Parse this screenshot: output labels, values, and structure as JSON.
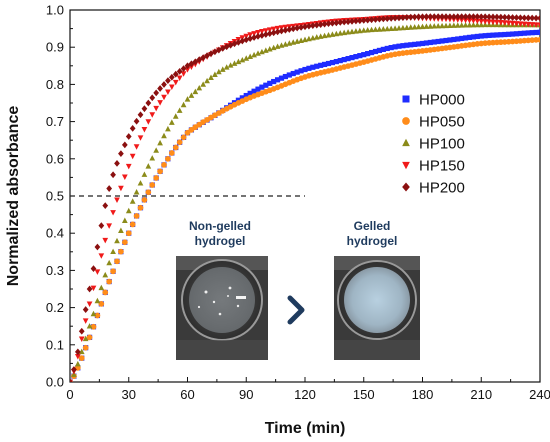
{
  "chart_data": {
    "type": "scatter",
    "xlabel": "Time (min)",
    "ylabel": "Normalized absorbance",
    "xlim": [
      0,
      240
    ],
    "ylim": [
      0,
      1.0
    ],
    "x_ticks": [
      0,
      30,
      60,
      90,
      120,
      150,
      180,
      210,
      240
    ],
    "x_tick_labels": [
      "0",
      "30",
      "60",
      "90",
      "120",
      "150",
      "180",
      "210",
      "240"
    ],
    "y_ticks": [
      0,
      0.1,
      0.2,
      0.3,
      0.4,
      0.5,
      0.6,
      0.7,
      0.8,
      0.9,
      1.0
    ],
    "y_tick_labels": [
      "0.0",
      "0.1",
      "0.2",
      "0.3",
      "0.4",
      "0.5",
      "0.6",
      "0.7",
      "0.8",
      "0.9",
      "1.0"
    ],
    "grid": false,
    "legend_position": "right",
    "reference_line": {
      "y": 0.5,
      "x_end": 120,
      "style": "dashed"
    },
    "x": [
      0,
      10,
      20,
      30,
      40,
      50,
      60,
      75,
      90,
      105,
      120,
      135,
      150,
      165,
      180,
      195,
      210,
      225,
      240
    ],
    "series": [
      {
        "name": "HP000",
        "color": "#1f2cff",
        "marker": "square",
        "values": [
          0.0,
          0.12,
          0.27,
          0.4,
          0.51,
          0.6,
          0.67,
          0.72,
          0.77,
          0.81,
          0.84,
          0.86,
          0.88,
          0.9,
          0.91,
          0.92,
          0.93,
          0.935,
          0.94
        ]
      },
      {
        "name": "HP050",
        "color": "#ff8c1a",
        "marker": "circle",
        "values": [
          0.0,
          0.12,
          0.27,
          0.4,
          0.51,
          0.6,
          0.67,
          0.72,
          0.76,
          0.79,
          0.82,
          0.84,
          0.86,
          0.88,
          0.89,
          0.9,
          0.91,
          0.915,
          0.92
        ]
      },
      {
        "name": "HP100",
        "color": "#8b8b1a",
        "marker": "triangle-up",
        "values": [
          0.0,
          0.15,
          0.32,
          0.46,
          0.58,
          0.68,
          0.76,
          0.83,
          0.87,
          0.9,
          0.92,
          0.935,
          0.945,
          0.95,
          0.955,
          0.958,
          0.96,
          0.96,
          0.96
        ]
      },
      {
        "name": "HP150",
        "color": "#f01a1a",
        "marker": "triangle-down",
        "values": [
          0.0,
          0.21,
          0.42,
          0.58,
          0.7,
          0.78,
          0.84,
          0.89,
          0.93,
          0.95,
          0.96,
          0.97,
          0.975,
          0.98,
          0.978,
          0.975,
          0.97,
          0.965,
          0.96
        ]
      },
      {
        "name": "HP200",
        "color": "#8b1010",
        "marker": "diamond",
        "values": [
          0.0,
          0.25,
          0.52,
          0.66,
          0.75,
          0.81,
          0.85,
          0.89,
          0.92,
          0.94,
          0.955,
          0.965,
          0.972,
          0.978,
          0.982,
          0.982,
          0.982,
          0.98,
          0.978
        ]
      }
    ],
    "inset": {
      "left_title_line1": "Non-gelled",
      "left_title_line2": "hydrogel",
      "right_title_line1": "Gelled",
      "right_title_line2": "hydrogel",
      "arrow_icon": "chevron-right-icon",
      "arrow_color": "#1f3b5e"
    }
  }
}
